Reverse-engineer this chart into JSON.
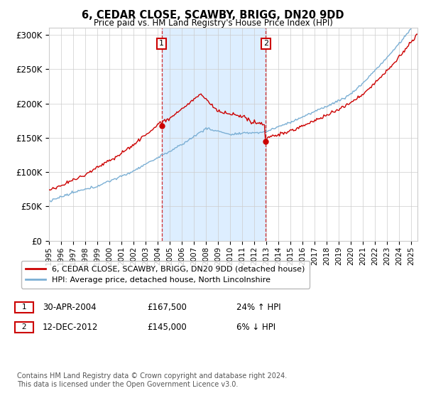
{
  "title": "6, CEDAR CLOSE, SCAWBY, BRIGG, DN20 9DD",
  "subtitle": "Price paid vs. HM Land Registry's House Price Index (HPI)",
  "ylabel_ticks": [
    "£0",
    "£50K",
    "£100K",
    "£150K",
    "£200K",
    "£250K",
    "£300K"
  ],
  "ytick_values": [
    0,
    50000,
    100000,
    150000,
    200000,
    250000,
    300000
  ],
  "ylim": [
    0,
    310000
  ],
  "xlim_start": 1995.0,
  "xlim_end": 2025.5,
  "sale1_date": 2004.33,
  "sale1_price": 167500,
  "sale1_label": "1",
  "sale2_date": 2012.95,
  "sale2_price": 145000,
  "sale2_label": "2",
  "line_color_property": "#cc0000",
  "line_color_hpi": "#7bafd4",
  "shade_color": "#ddeeff",
  "grid_color": "#cccccc",
  "background_color": "#ffffff",
  "legend_property": "6, CEDAR CLOSE, SCAWBY, BRIGG, DN20 9DD (detached house)",
  "legend_hpi": "HPI: Average price, detached house, North Lincolnshire",
  "footer": "Contains HM Land Registry data © Crown copyright and database right 2024.\nThis data is licensed under the Open Government Licence v3.0.",
  "table_row1": [
    "1",
    "30-APR-2004",
    "£167,500",
    "24% ↑ HPI"
  ],
  "table_row2": [
    "2",
    "12-DEC-2012",
    "£145,000",
    "6% ↓ HPI"
  ]
}
